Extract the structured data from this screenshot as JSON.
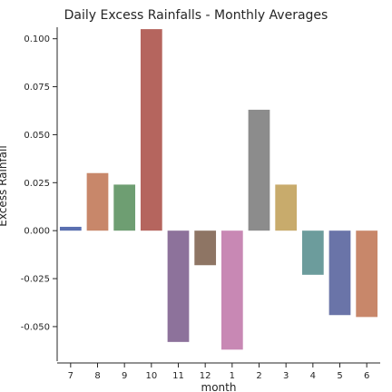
{
  "chart_data": {
    "type": "bar",
    "title": "Daily Excess Rainfalls - Monthly Averages",
    "xlabel": "month",
    "ylabel": "Excess Rainfall",
    "categories": [
      "7",
      "8",
      "9",
      "10",
      "11",
      "12",
      "1",
      "2",
      "3",
      "4",
      "5",
      "6"
    ],
    "values": [
      0.002,
      0.03,
      0.024,
      0.105,
      -0.058,
      -0.018,
      -0.062,
      0.063,
      0.024,
      -0.023,
      -0.044,
      -0.045
    ],
    "colors": [
      "#5a6fb0",
      "#c8876a",
      "#6e9e72",
      "#b5655e",
      "#8d729b",
      "#8e7564",
      "#c888b4",
      "#8c8c8c",
      "#c8ab6c",
      "#6c9c9c",
      "#6a74a8",
      "#c8876a"
    ],
    "yticks": [
      "0.100",
      "0.075",
      "0.050",
      "0.025",
      "0.000",
      "-0.025",
      "-0.050"
    ],
    "ylim": [
      -0.068,
      0.106
    ],
    "grid": false,
    "legend": "none"
  }
}
